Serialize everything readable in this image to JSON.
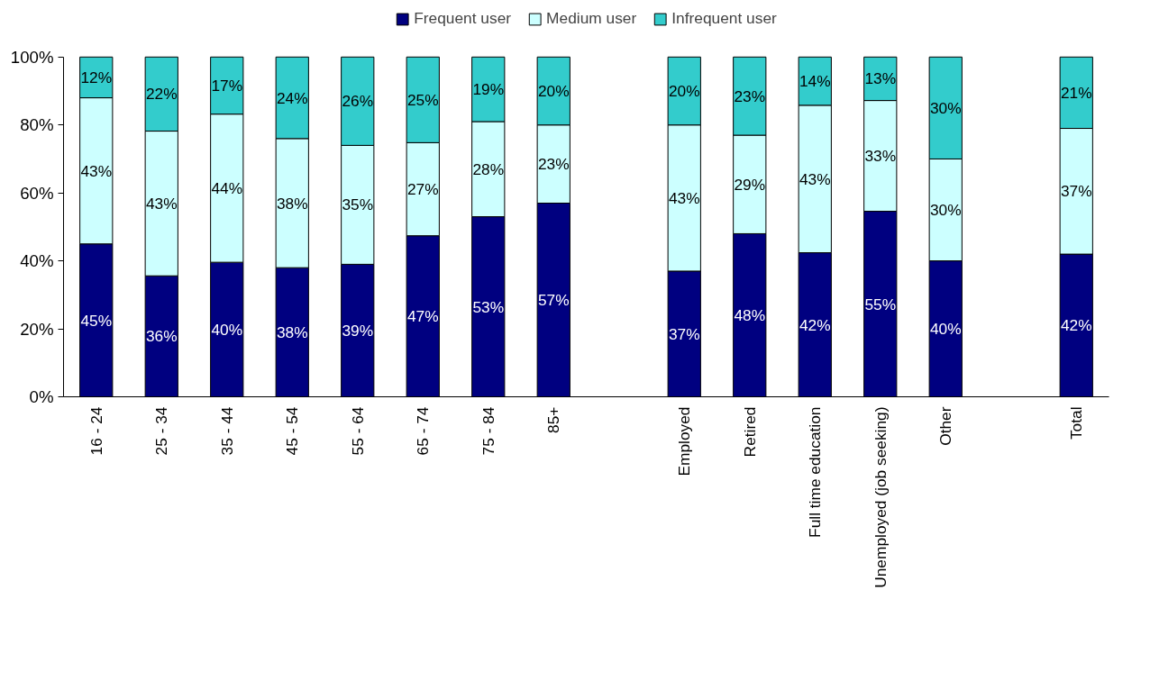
{
  "chart_data": {
    "type": "bar",
    "stacked": true,
    "categories": [
      "16 - 24",
      "25 - 34",
      "35 - 44",
      "45 - 54",
      "55 - 64",
      "65 - 74",
      "75 - 84",
      "85+",
      null,
      "Employed",
      "Retired",
      "Full time education",
      "Unemployed (job seeking)",
      "Other",
      null,
      "Total"
    ],
    "series": [
      {
        "name": "Frequent user",
        "color": "#000080",
        "values": [
          45,
          35.6,
          39.6,
          38,
          39,
          47.4,
          53,
          57,
          null,
          37,
          48,
          42.4,
          54.6,
          40,
          null,
          42
        ],
        "value_labels": [
          "45%",
          "36%",
          "40%",
          "38%",
          "39%",
          "47%",
          "53%",
          "57%",
          null,
          "37%",
          "48%",
          "42%",
          "55%",
          "40%",
          null,
          "42%"
        ]
      },
      {
        "name": "Medium user",
        "color": "#ccffff",
        "values": [
          43,
          42.6,
          43.6,
          38,
          35,
          27.4,
          28,
          23,
          null,
          43,
          29,
          43.4,
          32.6,
          30,
          null,
          37
        ],
        "value_labels": [
          "43%",
          "43%",
          "44%",
          "38%",
          "35%",
          "27%",
          "28%",
          "23%",
          null,
          "43%",
          "29%",
          "43%",
          "33%",
          "30%",
          null,
          "37%"
        ]
      },
      {
        "name": "Infrequent user",
        "color": "#33cccc",
        "values": [
          12,
          21.8,
          16.8,
          24,
          26,
          25.2,
          19,
          20,
          null,
          20,
          23,
          14.2,
          12.8,
          30,
          null,
          21
        ],
        "value_labels": [
          "12%",
          "22%",
          "17%",
          "24%",
          "26%",
          "25%",
          "19%",
          "20%",
          null,
          "20%",
          "23%",
          "14%",
          "13%",
          "30%",
          null,
          "21%"
        ]
      }
    ],
    "ylim": [
      0,
      100
    ],
    "yticks": [
      {
        "value": 0,
        "label": "0%"
      },
      {
        "value": 20,
        "label": "20%"
      },
      {
        "value": 40,
        "label": "40%"
      },
      {
        "value": 60,
        "label": "60%"
      },
      {
        "value": 80,
        "label": "80%"
      },
      {
        "value": 100,
        "label": "100%"
      }
    ],
    "grid": false,
    "legend": "top"
  }
}
